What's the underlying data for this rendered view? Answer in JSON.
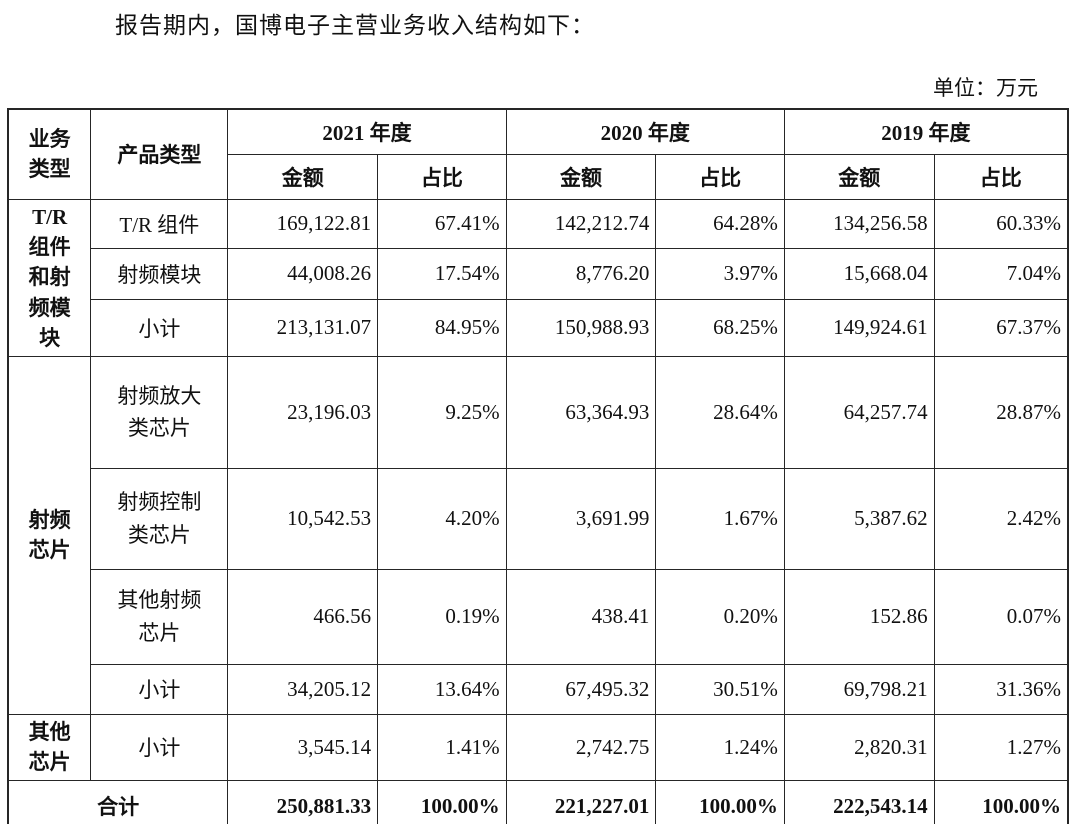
{
  "page": {
    "intro_text": "报告期内，国博电子主营业务收入结构如下：",
    "unit_label": "单位：万元"
  },
  "table": {
    "headers": {
      "business_type": "业务类型",
      "product_type": "产品类型",
      "year_2021": "2021 年度",
      "year_2020": "2020 年度",
      "year_2019": "2019 年度",
      "amount": "金额",
      "ratio": "占比"
    },
    "groups": [
      {
        "label": "T/R组件和射频模块"
      },
      {
        "label": "射频芯片"
      },
      {
        "label": "其他芯片"
      }
    ],
    "rows": [
      {
        "product": "T/R 组件",
        "a2021": "169,122.81",
        "p2021": "67.41%",
        "a2020": "142,212.74",
        "p2020": "64.28%",
        "a2019": "134,256.58",
        "p2019": "60.33%"
      },
      {
        "product": "射频模块",
        "a2021": "44,008.26",
        "p2021": "17.54%",
        "a2020": "8,776.20",
        "p2020": "3.97%",
        "a2019": "15,668.04",
        "p2019": "7.04%"
      },
      {
        "product": "小计",
        "a2021": "213,131.07",
        "p2021": "84.95%",
        "a2020": "150,988.93",
        "p2020": "68.25%",
        "a2019": "149,924.61",
        "p2019": "67.37%"
      },
      {
        "product": "射频放大类芯片",
        "a2021": "23,196.03",
        "p2021": "9.25%",
        "a2020": "63,364.93",
        "p2020": "28.64%",
        "a2019": "64,257.74",
        "p2019": "28.87%"
      },
      {
        "product": "射频控制类芯片",
        "a2021": "10,542.53",
        "p2021": "4.20%",
        "a2020": "3,691.99",
        "p2020": "1.67%",
        "a2019": "5,387.62",
        "p2019": "2.42%"
      },
      {
        "product": "其他射频芯片",
        "a2021": "466.56",
        "p2021": "0.19%",
        "a2020": "438.41",
        "p2020": "0.20%",
        "a2019": "152.86",
        "p2019": "0.07%"
      },
      {
        "product": "小计",
        "a2021": "34,205.12",
        "p2021": "13.64%",
        "a2020": "67,495.32",
        "p2020": "30.51%",
        "a2019": "69,798.21",
        "p2019": "31.36%"
      },
      {
        "product": "小计",
        "a2021": "3,545.14",
        "p2021": "1.41%",
        "a2020": "2,742.75",
        "p2020": "1.24%",
        "a2019": "2,820.31",
        "p2019": "1.27%"
      }
    ],
    "total": {
      "label": "合计",
      "a2021": "250,881.33",
      "p2021": "100.00%",
      "a2020": "221,227.01",
      "p2020": "100.00%",
      "a2019": "222,543.14",
      "p2019": "100.00%"
    }
  },
  "colors": {
    "text": "#111111",
    "border": "#262626",
    "background": "#ffffff"
  }
}
